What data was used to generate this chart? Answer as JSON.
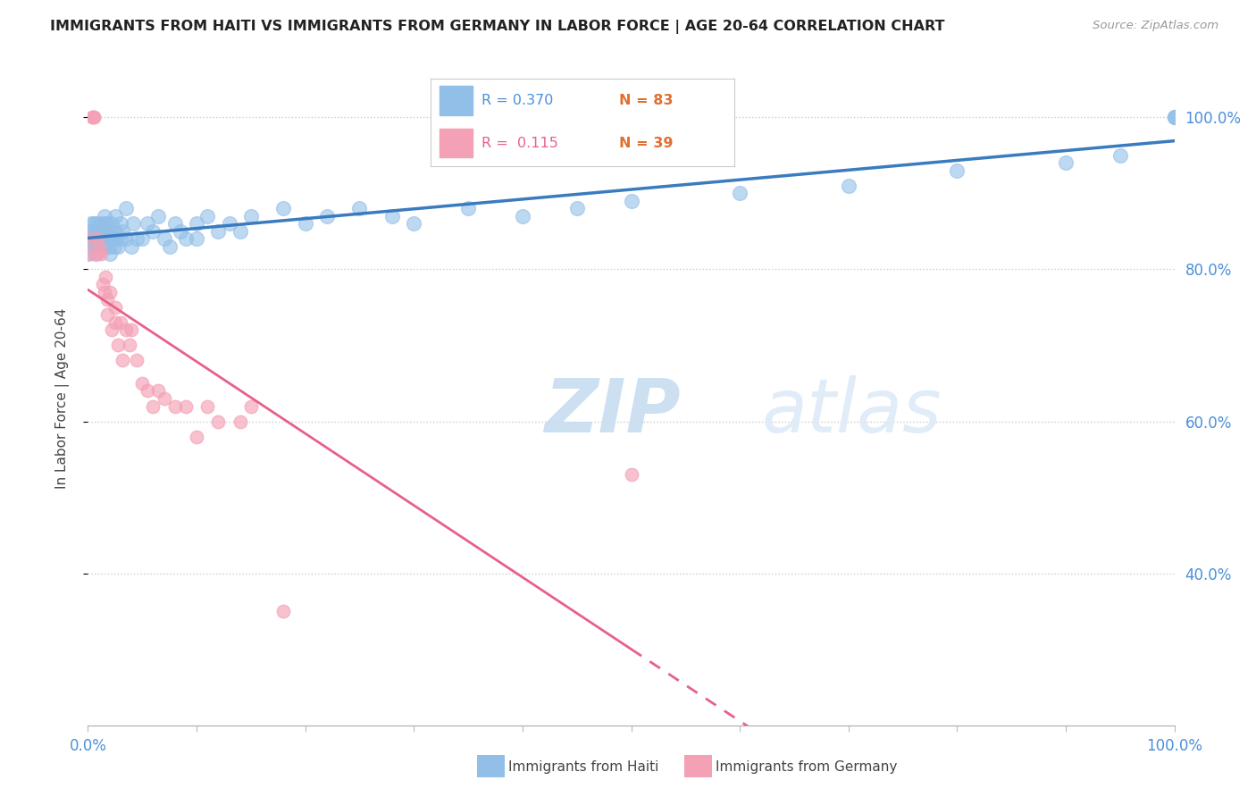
{
  "title": "IMMIGRANTS FROM HAITI VS IMMIGRANTS FROM GERMANY IN LABOR FORCE | AGE 20-64 CORRELATION CHART",
  "source": "Source: ZipAtlas.com",
  "ylabel": "In Labor Force | Age 20-64",
  "yticks": [
    0.4,
    0.6,
    0.8,
    1.0
  ],
  "ytick_labels": [
    "40.0%",
    "60.0%",
    "80.0%",
    "100.0%"
  ],
  "legend_haiti_r": "R = 0.370",
  "legend_haiti_n": "N = 83",
  "legend_germany_r": "R =  0.115",
  "legend_germany_n": "N = 39",
  "haiti_color": "#92bfe8",
  "germany_color": "#f4a0b5",
  "haiti_line_color": "#3a7bbf",
  "germany_line_color": "#e8608a",
  "watermark_zip": "ZIP",
  "watermark_atlas": "atlas",
  "xlim": [
    0.0,
    1.0
  ],
  "ylim": [
    0.2,
    1.06
  ],
  "haiti_x": [
    0.0,
    0.002,
    0.003,
    0.003,
    0.004,
    0.005,
    0.005,
    0.006,
    0.007,
    0.007,
    0.008,
    0.008,
    0.009,
    0.009,
    0.01,
    0.01,
    0.01,
    0.012,
    0.012,
    0.013,
    0.013,
    0.014,
    0.015,
    0.015,
    0.015,
    0.016,
    0.016,
    0.017,
    0.018,
    0.018,
    0.019,
    0.02,
    0.02,
    0.02,
    0.022,
    0.022,
    0.024,
    0.025,
    0.025,
    0.026,
    0.028,
    0.03,
    0.03,
    0.032,
    0.035,
    0.035,
    0.04,
    0.042,
    0.045,
    0.05,
    0.055,
    0.06,
    0.065,
    0.07,
    0.075,
    0.08,
    0.085,
    0.09,
    0.1,
    0.1,
    0.11,
    0.12,
    0.13,
    0.14,
    0.15,
    0.18,
    0.2,
    0.22,
    0.25,
    0.28,
    0.3,
    0.35,
    0.4,
    0.45,
    0.5,
    0.6,
    0.7,
    0.8,
    0.9,
    0.95,
    1.0,
    1.0,
    1.0
  ],
  "haiti_y": [
    0.82,
    0.84,
    0.86,
    0.85,
    0.84,
    0.86,
    0.83,
    0.85,
    0.84,
    0.82,
    0.86,
    0.83,
    0.85,
    0.84,
    0.83,
    0.85,
    0.84,
    0.84,
    0.86,
    0.83,
    0.85,
    0.84,
    0.85,
    0.83,
    0.87,
    0.84,
    0.86,
    0.85,
    0.84,
    0.86,
    0.83,
    0.85,
    0.84,
    0.82,
    0.86,
    0.84,
    0.83,
    0.87,
    0.85,
    0.84,
    0.83,
    0.86,
    0.84,
    0.85,
    0.84,
    0.88,
    0.83,
    0.86,
    0.84,
    0.84,
    0.86,
    0.85,
    0.87,
    0.84,
    0.83,
    0.86,
    0.85,
    0.84,
    0.86,
    0.84,
    0.87,
    0.85,
    0.86,
    0.85,
    0.87,
    0.88,
    0.86,
    0.87,
    0.88,
    0.87,
    0.86,
    0.88,
    0.87,
    0.88,
    0.89,
    0.9,
    0.91,
    0.93,
    0.94,
    0.95,
    1.0,
    1.0,
    1.0
  ],
  "germany_x": [
    0.0,
    0.002,
    0.004,
    0.005,
    0.005,
    0.008,
    0.009,
    0.01,
    0.012,
    0.014,
    0.015,
    0.016,
    0.018,
    0.018,
    0.02,
    0.022,
    0.025,
    0.025,
    0.028,
    0.03,
    0.032,
    0.035,
    0.038,
    0.04,
    0.045,
    0.05,
    0.055,
    0.06,
    0.065,
    0.07,
    0.08,
    0.09,
    0.1,
    0.11,
    0.12,
    0.14,
    0.15,
    0.18,
    0.5
  ],
  "germany_y": [
    0.84,
    0.82,
    1.0,
    1.0,
    1.0,
    0.84,
    0.82,
    0.83,
    0.82,
    0.78,
    0.77,
    0.79,
    0.76,
    0.74,
    0.77,
    0.72,
    0.75,
    0.73,
    0.7,
    0.73,
    0.68,
    0.72,
    0.7,
    0.72,
    0.68,
    0.65,
    0.64,
    0.62,
    0.64,
    0.63,
    0.62,
    0.62,
    0.58,
    0.62,
    0.6,
    0.6,
    0.62,
    0.35,
    0.53
  ]
}
